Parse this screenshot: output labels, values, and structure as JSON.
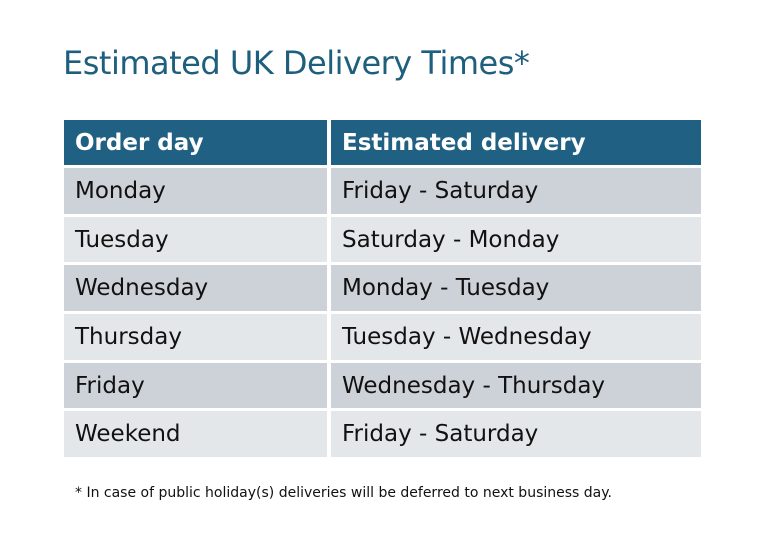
{
  "title": "Estimated UK Delivery Times*",
  "table": {
    "headers": [
      "Order day",
      "Estimated delivery"
    ],
    "rows": [
      [
        "Monday",
        "Friday - Saturday"
      ],
      [
        "Tuesday",
        "Saturday - Monday"
      ],
      [
        "Wednesday",
        "Monday - Tuesday"
      ],
      [
        "Thursday",
        "Tuesday - Wednesday"
      ],
      [
        "Friday",
        "Wednesday - Thursday"
      ],
      [
        "Weekend",
        "Friday - Saturday"
      ]
    ]
  },
  "footnote": "* In case of public holiday(s) deliveries will be deferred to next business day.",
  "colors": {
    "header": "#206183",
    "row_dark": "#cdd1d8",
    "row_light": "#e4e7ea",
    "title": "#1f5f7e"
  }
}
